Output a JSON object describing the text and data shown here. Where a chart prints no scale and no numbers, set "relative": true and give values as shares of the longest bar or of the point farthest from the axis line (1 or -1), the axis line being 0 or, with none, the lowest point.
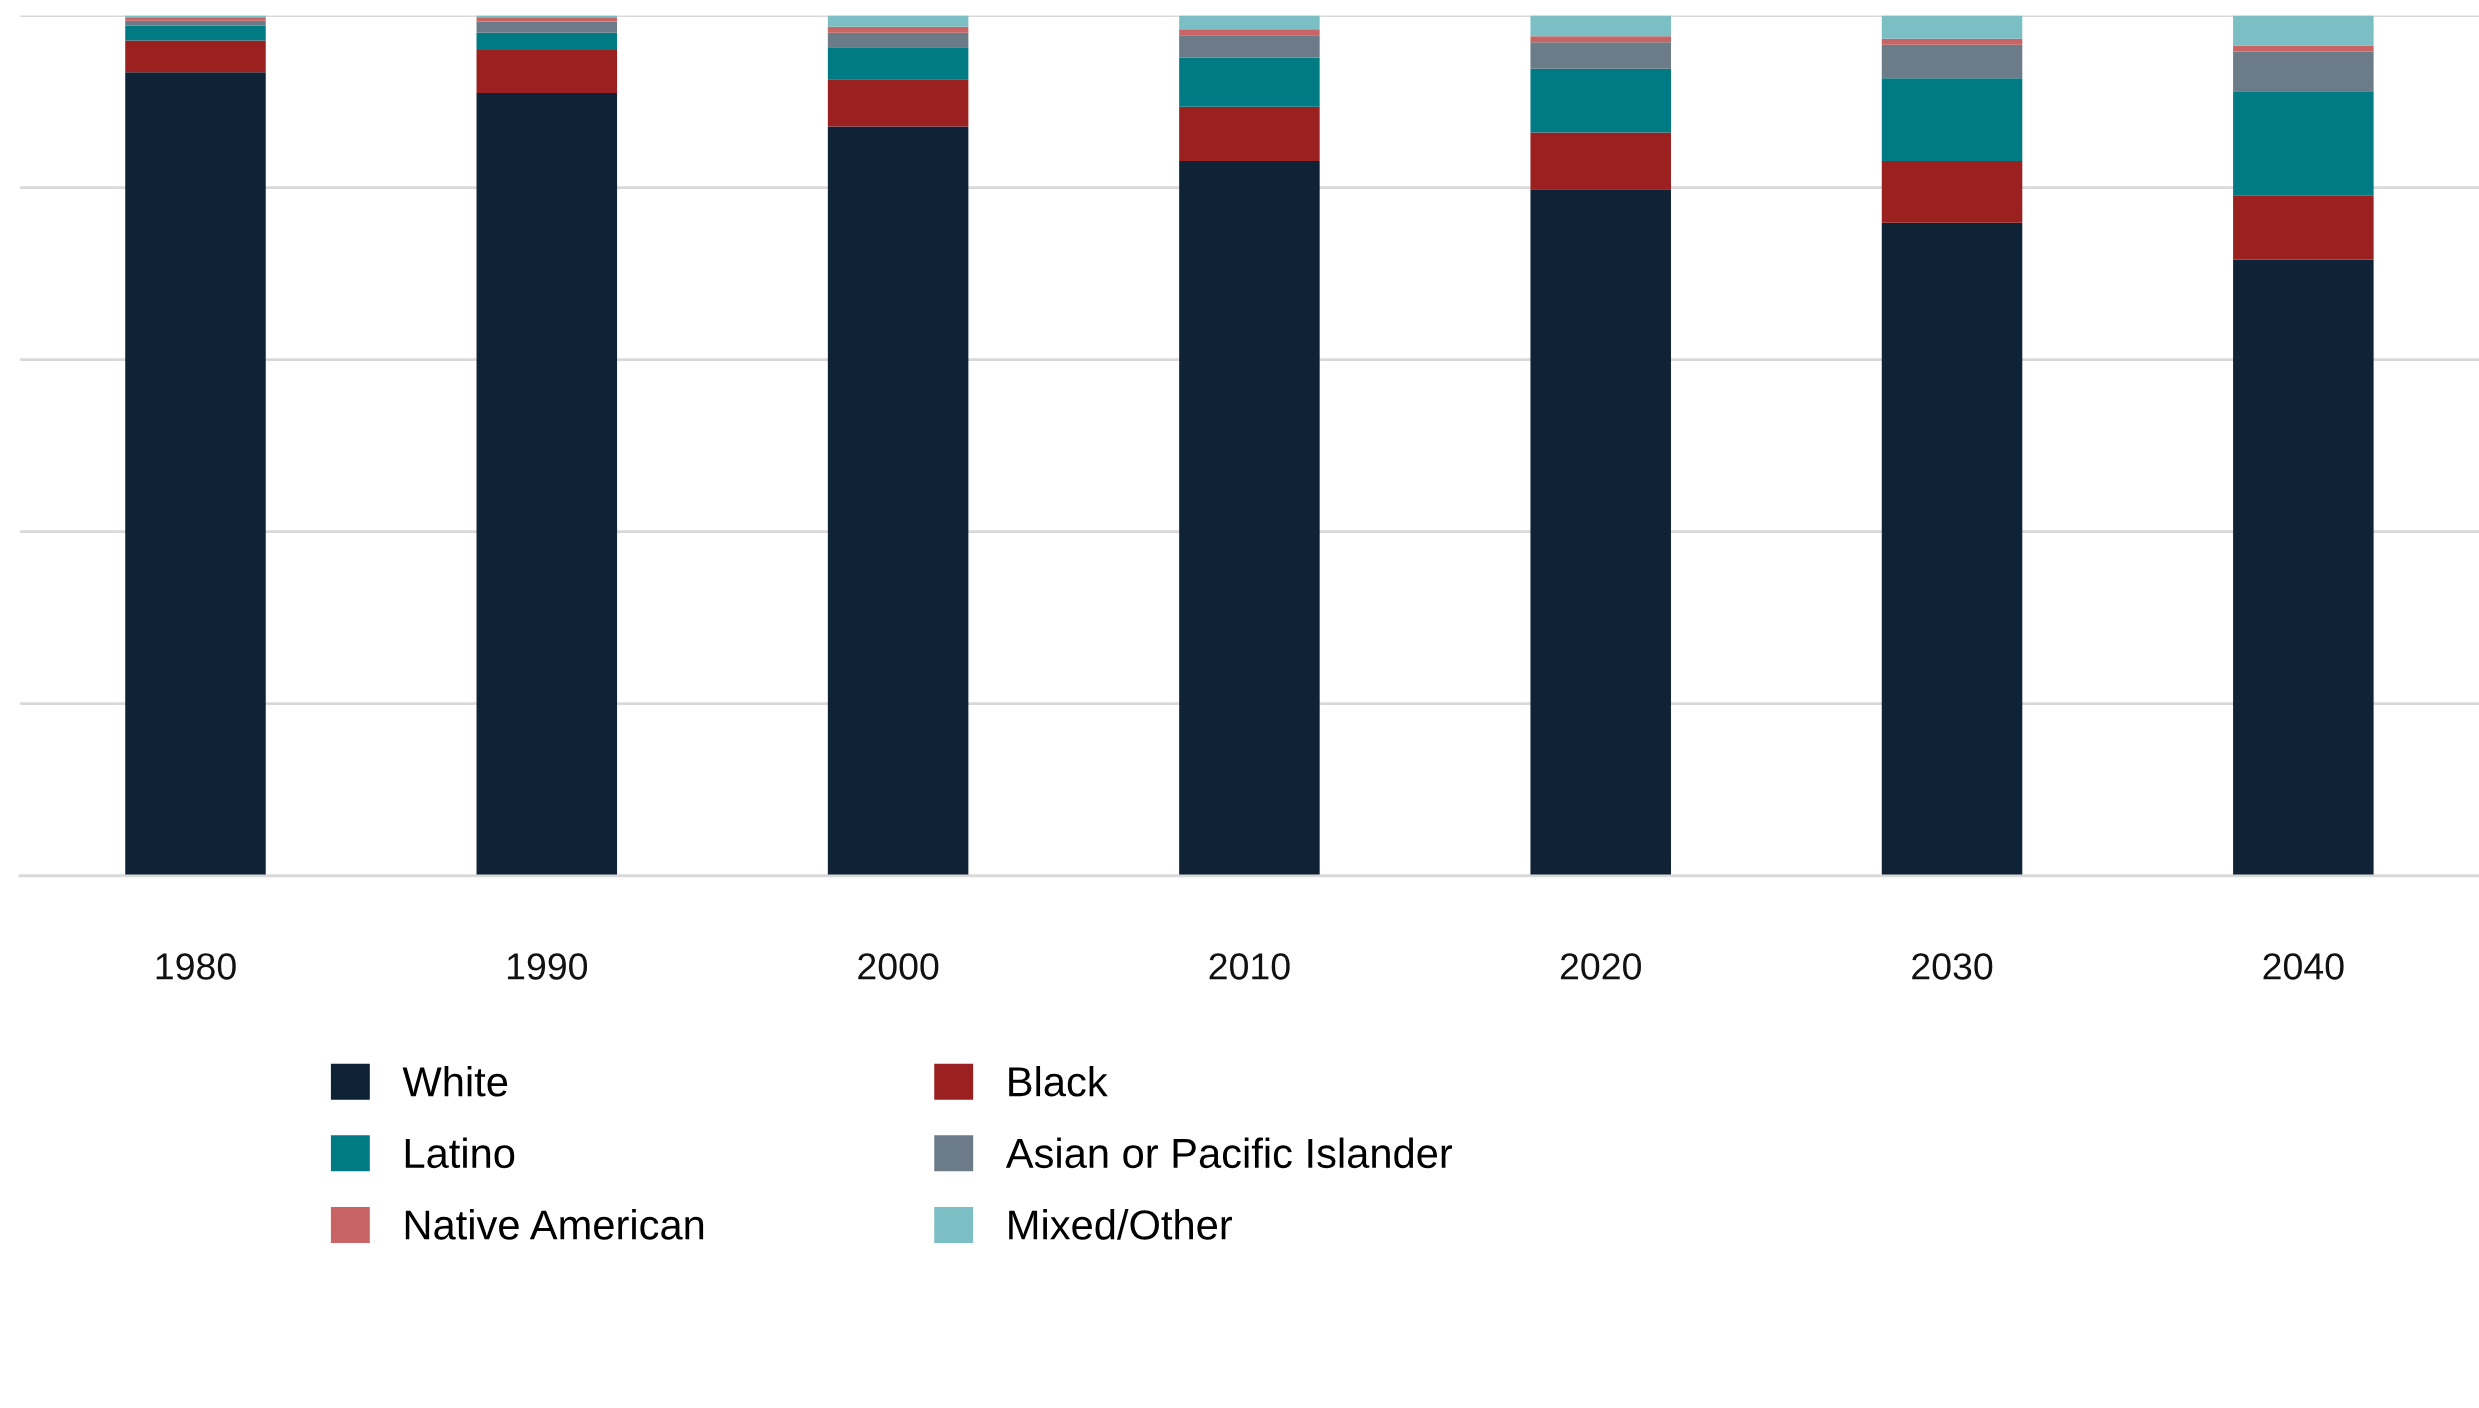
{
  "chart_data": {
    "type": "bar",
    "stacked": true,
    "relative": true,
    "grid": "y",
    "legend": "bottom",
    "categories": [
      "1980",
      "1990",
      "2000",
      "2010",
      "2020",
      "2030",
      "2040"
    ],
    "series": [
      {
        "name": "White",
        "color": "#0f2236",
        "values": [
          0.934,
          0.91,
          0.871,
          0.831,
          0.798,
          0.759,
          0.716
        ]
      },
      {
        "name": "Black",
        "color": "#9b2020",
        "values": [
          0.037,
          0.05,
          0.055,
          0.063,
          0.066,
          0.072,
          0.075
        ]
      },
      {
        "name": "Latino",
        "color": "#007b84",
        "values": [
          0.017,
          0.02,
          0.037,
          0.057,
          0.074,
          0.096,
          0.121
        ]
      },
      {
        "name": "Asian or Pacific Islander",
        "color": "#6b7b88",
        "values": [
          0.006,
          0.013,
          0.017,
          0.026,
          0.031,
          0.039,
          0.046
        ]
      },
      {
        "name": "Native American",
        "color": "#c96464",
        "values": [
          0.004,
          0.005,
          0.007,
          0.007,
          0.007,
          0.007,
          0.007
        ]
      },
      {
        "name": "Mixed/Other",
        "color": "#7bbfc4",
        "values": [
          0.002,
          0.002,
          0.013,
          0.016,
          0.024,
          0.027,
          0.035
        ]
      }
    ]
  }
}
